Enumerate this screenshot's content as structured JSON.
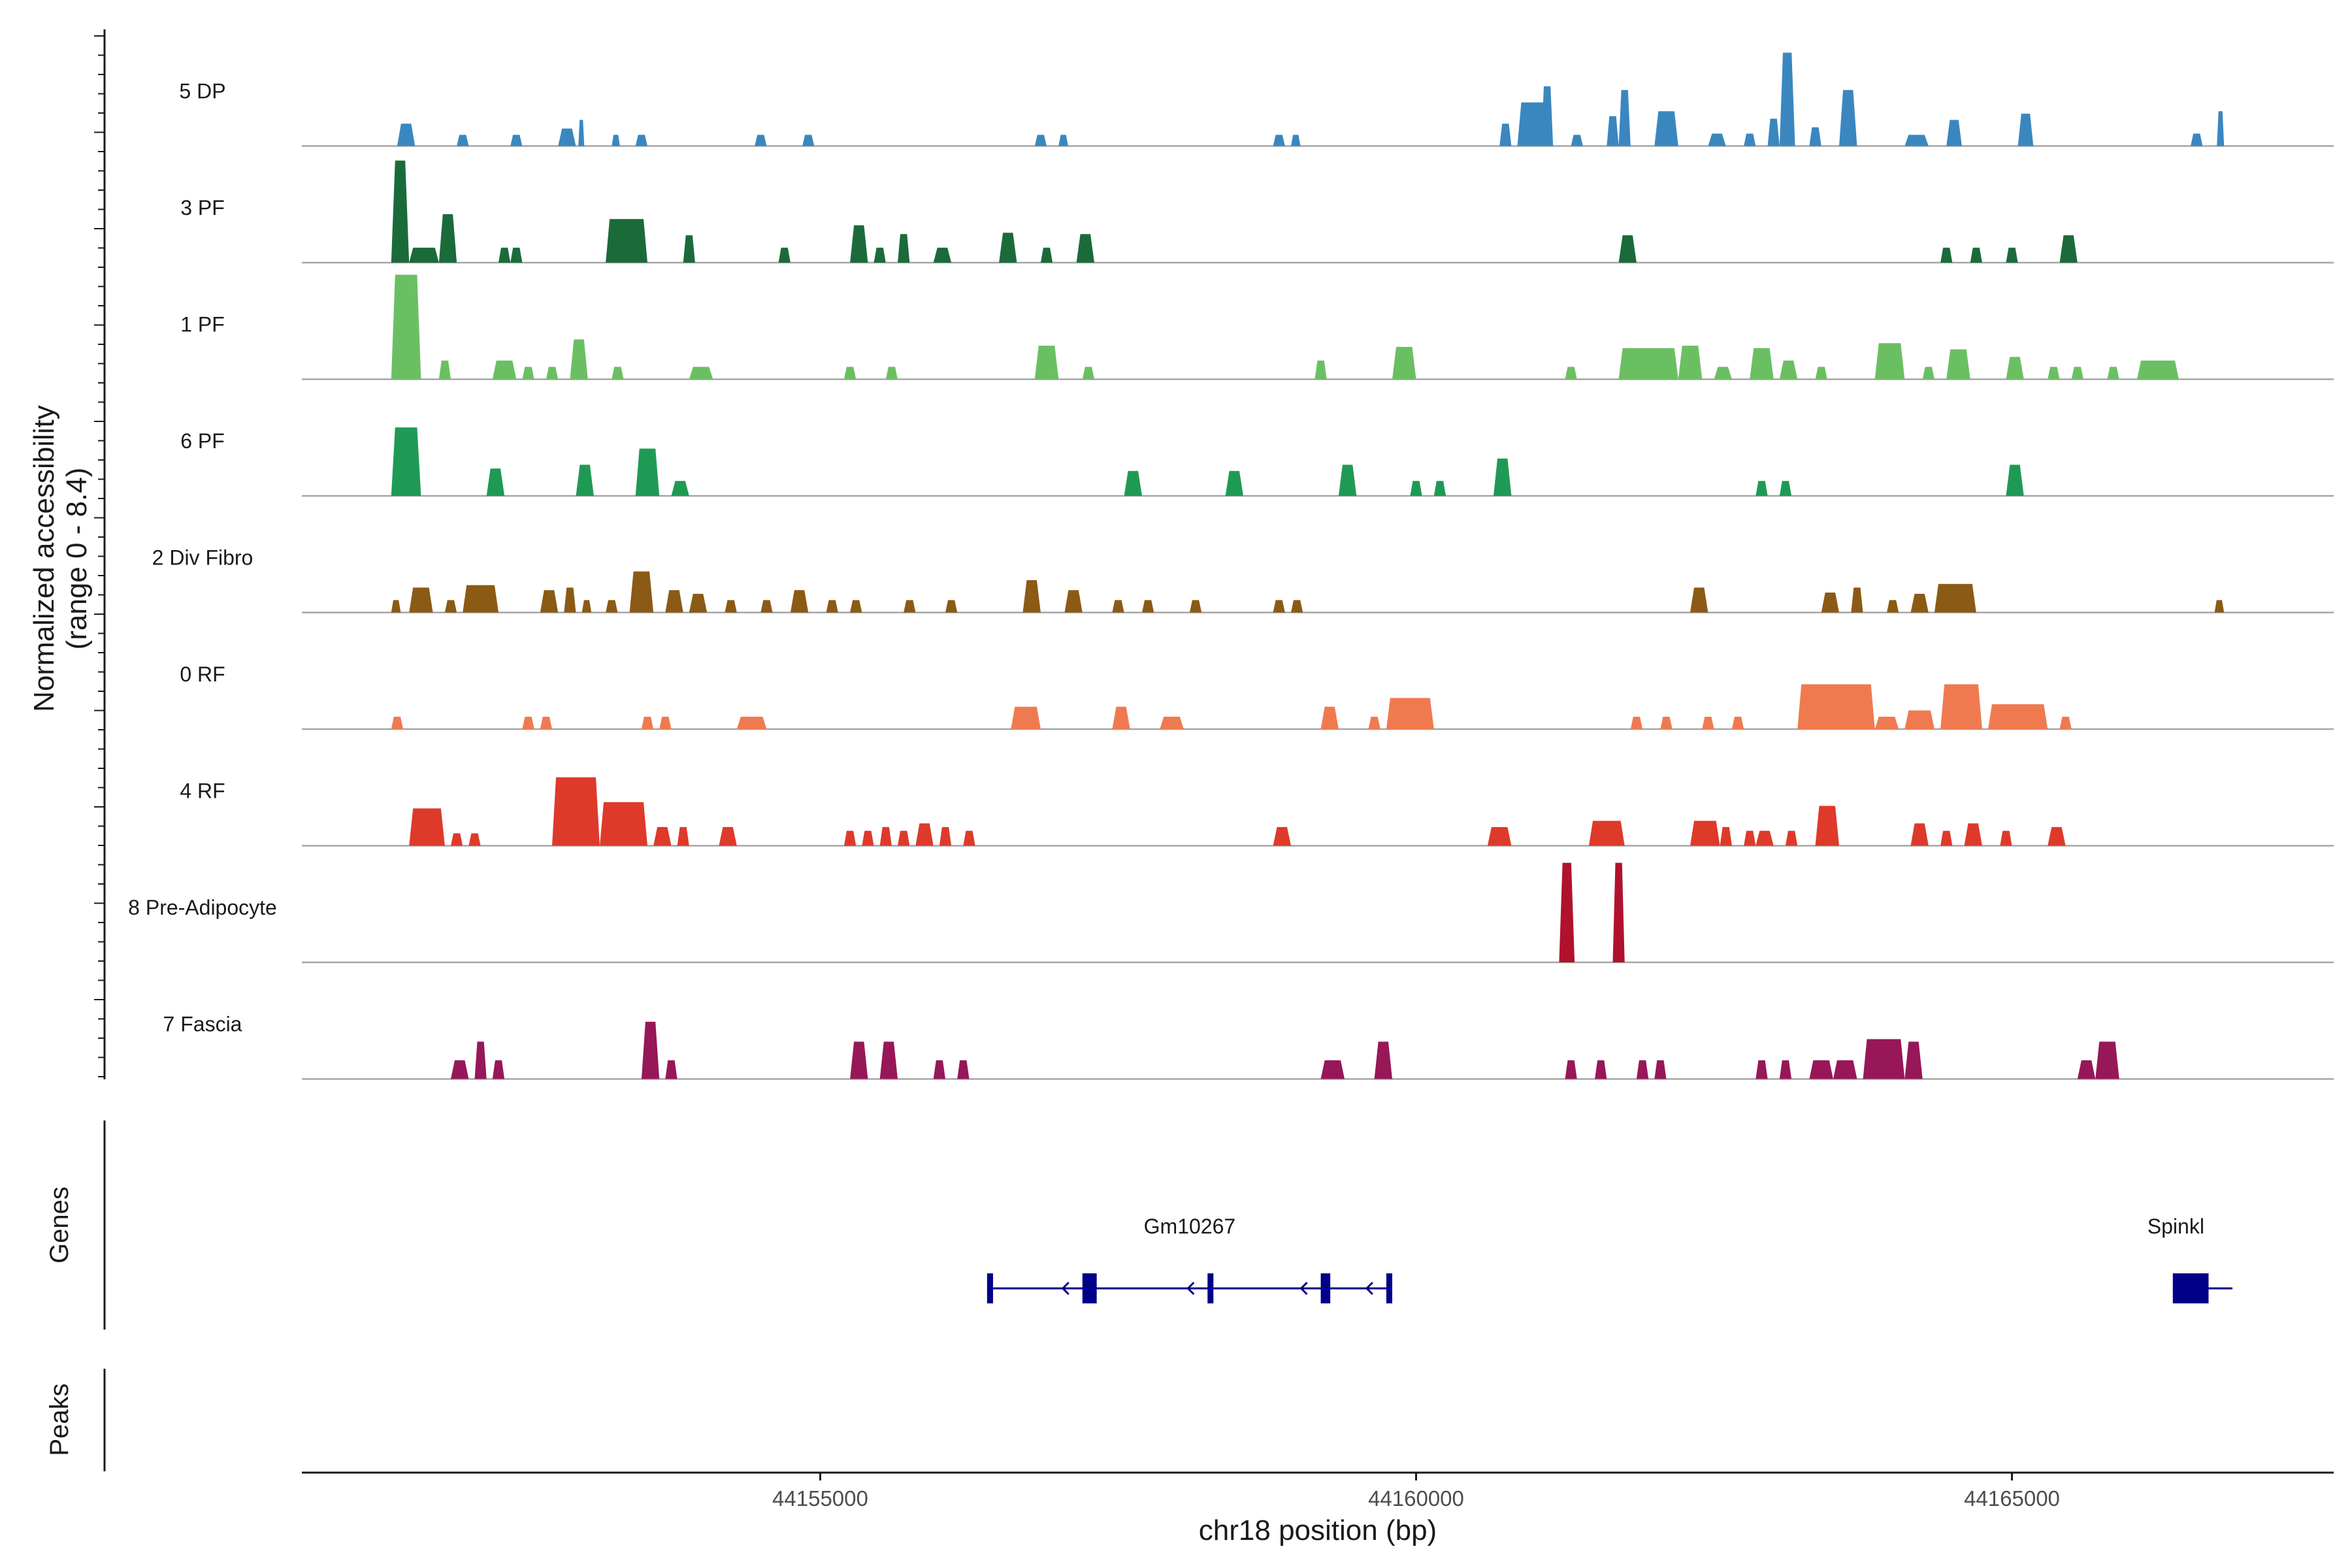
{
  "chart_data": {
    "type": "area",
    "title": "",
    "ylabel_line1": "Normalized accessibility",
    "ylabel_line2": "(range 0 - 8.4)",
    "yrange": [
      0,
      8.4
    ],
    "xlabel": "chr18 position (bp)",
    "xlim": [
      44150650,
      44167700
    ],
    "xticks": [
      {
        "value": 44155000,
        "label": "44155000"
      },
      {
        "value": 44160000,
        "label": "44160000"
      },
      {
        "value": 44165000,
        "label": "44165000"
      }
    ],
    "panels": {
      "genes": "Genes",
      "peaks": "Peaks"
    },
    "series": [
      {
        "name": "5 DP",
        "color": "#3a87c0",
        "peaks": [
          [
            44151450,
            44151600,
            1.8
          ],
          [
            44151950,
            44152050,
            0.9
          ],
          [
            44152400,
            44152500,
            0.9
          ],
          [
            44152800,
            44152950,
            1.4
          ],
          [
            44152970,
            44153020,
            2.1
          ],
          [
            44153250,
            44153320,
            0.9
          ],
          [
            44153450,
            44153550,
            0.9
          ],
          [
            44154450,
            44154550,
            0.9
          ],
          [
            44154850,
            44154950,
            0.9
          ],
          [
            44156800,
            44156900,
            0.9
          ],
          [
            44157000,
            44157080,
            0.9
          ],
          [
            44158800,
            44158900,
            0.9
          ],
          [
            44158950,
            44159030,
            0.9
          ],
          [
            44160700,
            44160800,
            1.8
          ],
          [
            44160850,
            44161100,
            3.5
          ],
          [
            44161050,
            44161150,
            4.8
          ],
          [
            44161300,
            44161400,
            0.9
          ],
          [
            44161600,
            44161700,
            2.4
          ],
          [
            44161700,
            44161800,
            4.5
          ],
          [
            44162000,
            44162200,
            2.8
          ],
          [
            44162450,
            44162600,
            1.0
          ],
          [
            44162750,
            44162850,
            1.0
          ],
          [
            44162950,
            44163050,
            2.2
          ],
          [
            44163050,
            44163180,
            7.5
          ],
          [
            44163300,
            44163400,
            1.5
          ],
          [
            44163550,
            44163700,
            4.5
          ],
          [
            44164100,
            44164300,
            0.9
          ],
          [
            44164450,
            44164580,
            2.1
          ],
          [
            44165050,
            44165180,
            2.6
          ],
          [
            44166500,
            44166600,
            1.0
          ],
          [
            44166720,
            44166780,
            2.8
          ]
        ]
      },
      {
        "name": "3 PF",
        "color": "#1b6b3a",
        "peaks": [
          [
            44151400,
            44151550,
            8.2
          ],
          [
            44151550,
            44151800,
            1.2
          ],
          [
            44151800,
            44151950,
            3.9
          ],
          [
            44152300,
            44152400,
            1.2
          ],
          [
            44152400,
            44152500,
            1.2
          ],
          [
            44153200,
            44153550,
            3.5
          ],
          [
            44153850,
            44153950,
            2.2
          ],
          [
            44154650,
            44154750,
            1.2
          ],
          [
            44155250,
            44155400,
            3.0
          ],
          [
            44155450,
            44155550,
            1.2
          ],
          [
            44155650,
            44155750,
            2.3
          ],
          [
            44155950,
            44156100,
            1.2
          ],
          [
            44156500,
            44156650,
            2.4
          ],
          [
            44156850,
            44156950,
            1.2
          ],
          [
            44157150,
            44157300,
            2.3
          ],
          [
            44161700,
            44161850,
            2.2
          ],
          [
            44164400,
            44164500,
            1.2
          ],
          [
            44164650,
            44164750,
            1.2
          ],
          [
            44164950,
            44165050,
            1.2
          ],
          [
            44165400,
            44165550,
            2.2
          ]
        ]
      },
      {
        "name": "1 PF",
        "color": "#6bbf63",
        "peaks": [
          [
            44151400,
            44151650,
            8.4
          ],
          [
            44151800,
            44151900,
            1.5
          ],
          [
            44152250,
            44152450,
            1.5
          ],
          [
            44152500,
            44152600,
            1.0
          ],
          [
            44152700,
            44152800,
            1.0
          ],
          [
            44152900,
            44153050,
            3.2
          ],
          [
            44153250,
            44153350,
            1.0
          ],
          [
            44153900,
            44154100,
            1.0
          ],
          [
            44155200,
            44155300,
            1.0
          ],
          [
            44155550,
            44155650,
            1.0
          ],
          [
            44156800,
            44157000,
            2.7
          ],
          [
            44157200,
            44157300,
            1.0
          ],
          [
            44159150,
            44159250,
            1.5
          ],
          [
            44159800,
            44160000,
            2.6
          ],
          [
            44161250,
            44161350,
            1.0
          ],
          [
            44161700,
            44162200,
            2.5
          ],
          [
            44162200,
            44162400,
            2.7
          ],
          [
            44162500,
            44162650,
            1.0
          ],
          [
            44162800,
            44163000,
            2.5
          ],
          [
            44163050,
            44163200,
            1.5
          ],
          [
            44163350,
            44163450,
            1.0
          ],
          [
            44163850,
            44164100,
            2.9
          ],
          [
            44164250,
            44164350,
            1.0
          ],
          [
            44164450,
            44164650,
            2.4
          ],
          [
            44164950,
            44165100,
            1.8
          ],
          [
            44165300,
            44165400,
            1.0
          ],
          [
            44165500,
            44165600,
            1.0
          ],
          [
            44165800,
            44165900,
            1.0
          ],
          [
            44166050,
            44166400,
            1.5
          ]
        ]
      },
      {
        "name": "6 PF",
        "color": "#1f9a55",
        "peaks": [
          [
            44151400,
            44151650,
            5.5
          ],
          [
            44152200,
            44152350,
            2.2
          ],
          [
            44152950,
            44153100,
            2.5
          ],
          [
            44153450,
            44153650,
            3.8
          ],
          [
            44153750,
            44153900,
            1.2
          ],
          [
            44157550,
            44157700,
            2.0
          ],
          [
            44158400,
            44158550,
            2.0
          ],
          [
            44159350,
            44159500,
            2.5
          ],
          [
            44159950,
            44160050,
            1.2
          ],
          [
            44160150,
            44160250,
            1.2
          ],
          [
            44160650,
            44160800,
            3.0
          ],
          [
            44162850,
            44162950,
            1.2
          ],
          [
            44163050,
            44163150,
            1.2
          ],
          [
            44164950,
            44165100,
            2.5
          ]
        ]
      },
      {
        "name": "2 Div Fibro",
        "color": "#8b5a14",
        "peaks": [
          [
            44151400,
            44151480,
            1.0
          ],
          [
            44151550,
            44151750,
            2.0
          ],
          [
            44151850,
            44151950,
            1.0
          ],
          [
            44152000,
            44152300,
            2.2
          ],
          [
            44152650,
            44152800,
            1.8
          ],
          [
            44152850,
            44152950,
            2.0
          ],
          [
            44153000,
            44153080,
            1.0
          ],
          [
            44153200,
            44153300,
            1.0
          ],
          [
            44153400,
            44153600,
            3.3
          ],
          [
            44153700,
            44153850,
            1.8
          ],
          [
            44153900,
            44154050,
            1.5
          ],
          [
            44154200,
            44154300,
            1.0
          ],
          [
            44154500,
            44154600,
            1.0
          ],
          [
            44154750,
            44154900,
            1.8
          ],
          [
            44155050,
            44155150,
            1.0
          ],
          [
            44155250,
            44155350,
            1.0
          ],
          [
            44155700,
            44155800,
            1.0
          ],
          [
            44156050,
            44156150,
            1.0
          ],
          [
            44156700,
            44156850,
            2.6
          ],
          [
            44157050,
            44157200,
            1.8
          ],
          [
            44157450,
            44157550,
            1.0
          ],
          [
            44157700,
            44157800,
            1.0
          ],
          [
            44158100,
            44158200,
            1.0
          ],
          [
            44158800,
            44158900,
            1.0
          ],
          [
            44158950,
            44159050,
            1.0
          ],
          [
            44162300,
            44162450,
            2.0
          ],
          [
            44163400,
            44163550,
            1.6
          ],
          [
            44163650,
            44163750,
            2.0
          ],
          [
            44163950,
            44164050,
            1.0
          ],
          [
            44164150,
            44164300,
            1.5
          ],
          [
            44164350,
            44164700,
            2.3
          ],
          [
            44166700,
            44166780,
            1.0
          ]
        ]
      },
      {
        "name": "0 RF",
        "color": "#f07a50",
        "peaks": [
          [
            44151400,
            44151500,
            1.0
          ],
          [
            44152500,
            44152600,
            1.0
          ],
          [
            44152650,
            44152750,
            1.0
          ],
          [
            44153500,
            44153600,
            1.0
          ],
          [
            44153650,
            44153750,
            1.0
          ],
          [
            44154300,
            44154550,
            1.0
          ],
          [
            44156600,
            44156850,
            1.8
          ],
          [
            44157450,
            44157600,
            1.8
          ],
          [
            44157850,
            44158050,
            1.0
          ],
          [
            44159200,
            44159350,
            1.8
          ],
          [
            44159600,
            44159700,
            1.0
          ],
          [
            44159750,
            44160150,
            2.5
          ],
          [
            44161800,
            44161900,
            1.0
          ],
          [
            44162050,
            44162150,
            1.0
          ],
          [
            44162400,
            44162500,
            1.0
          ],
          [
            44162650,
            44162750,
            1.0
          ],
          [
            44163200,
            44163850,
            3.6
          ],
          [
            44163850,
            44164050,
            1.0
          ],
          [
            44164100,
            44164350,
            1.5
          ],
          [
            44164400,
            44164750,
            3.6
          ],
          [
            44164800,
            44165300,
            2.0
          ],
          [
            44165400,
            44165500,
            1.0
          ]
        ]
      },
      {
        "name": "4 RF",
        "color": "#de3a2a",
        "peaks": [
          [
            44151550,
            44151850,
            3.0
          ],
          [
            44151900,
            44152000,
            1.0
          ],
          [
            44152050,
            44152150,
            1.0
          ],
          [
            44152750,
            44153150,
            5.5
          ],
          [
            44153150,
            44153550,
            3.5
          ],
          [
            44153600,
            44153750,
            1.5
          ],
          [
            44153800,
            44153900,
            1.5
          ],
          [
            44154150,
            44154300,
            1.5
          ],
          [
            44155200,
            44155300,
            1.2
          ],
          [
            44155350,
            44155450,
            1.2
          ],
          [
            44155500,
            44155600,
            1.5
          ],
          [
            44155650,
            44155750,
            1.2
          ],
          [
            44155800,
            44155950,
            1.8
          ],
          [
            44156000,
            44156100,
            1.5
          ],
          [
            44156200,
            44156300,
            1.2
          ],
          [
            44158800,
            44158950,
            1.5
          ],
          [
            44160600,
            44160800,
            1.5
          ],
          [
            44161450,
            44161750,
            2.0
          ],
          [
            44162300,
            44162550,
            2.0
          ],
          [
            44162550,
            44162650,
            1.5
          ],
          [
            44162750,
            44162850,
            1.2
          ],
          [
            44162850,
            44163000,
            1.2
          ],
          [
            44163100,
            44163200,
            1.2
          ],
          [
            44163350,
            44163550,
            3.2
          ],
          [
            44164150,
            44164300,
            1.8
          ],
          [
            44164400,
            44164500,
            1.2
          ],
          [
            44164600,
            44164750,
            1.8
          ],
          [
            44164900,
            44165000,
            1.2
          ],
          [
            44165300,
            44165450,
            1.5
          ]
        ]
      },
      {
        "name": "8 Pre-Adipocyte",
        "color": "#b0122d",
        "peaks": [
          [
            44161200,
            44161330,
            8.0
          ],
          [
            44161650,
            44161750,
            8.0
          ]
        ]
      },
      {
        "name": "7 Fascia",
        "color": "#971759",
        "peaks": [
          [
            44151900,
            44152050,
            1.5
          ],
          [
            44152100,
            44152200,
            3.0
          ],
          [
            44152250,
            44152350,
            1.5
          ],
          [
            44153500,
            44153650,
            4.6
          ],
          [
            44153700,
            44153800,
            1.5
          ],
          [
            44155250,
            44155400,
            3.0
          ],
          [
            44155500,
            44155650,
            3.0
          ],
          [
            44155950,
            44156050,
            1.5
          ],
          [
            44156150,
            44156250,
            1.5
          ],
          [
            44159200,
            44159400,
            1.5
          ],
          [
            44159650,
            44159800,
            3.0
          ],
          [
            44161250,
            44161350,
            1.5
          ],
          [
            44161500,
            44161600,
            1.5
          ],
          [
            44161850,
            44161950,
            1.5
          ],
          [
            44162000,
            44162100,
            1.5
          ],
          [
            44162850,
            44162950,
            1.5
          ],
          [
            44163050,
            44163150,
            1.5
          ],
          [
            44163300,
            44163500,
            1.5
          ],
          [
            44163500,
            44163700,
            1.5
          ],
          [
            44163750,
            44164100,
            3.2
          ],
          [
            44164100,
            44164250,
            3.0
          ],
          [
            44165550,
            44165700,
            1.5
          ],
          [
            44165700,
            44165900,
            3.0
          ]
        ]
      }
    ],
    "genes": [
      {
        "name": "Gm10267",
        "start": 44156400,
        "end": 44159800,
        "strand": "-",
        "show_label": true,
        "exons": [
          [
            44156400,
            44156450
          ],
          [
            44157200,
            44157320
          ],
          [
            44158250,
            44158290
          ],
          [
            44159200,
            44159280
          ],
          [
            44159750,
            44159800
          ]
        ]
      },
      {
        "name": "Spinkl",
        "start": 44166350,
        "end": 44166850,
        "strand": "+",
        "show_label": true,
        "exons": [
          [
            44166350,
            44166650
          ]
        ]
      }
    ],
    "gene_color": "#000088",
    "axis_color": "#1a1a1a",
    "baseline_color": "#a6a6a6"
  }
}
